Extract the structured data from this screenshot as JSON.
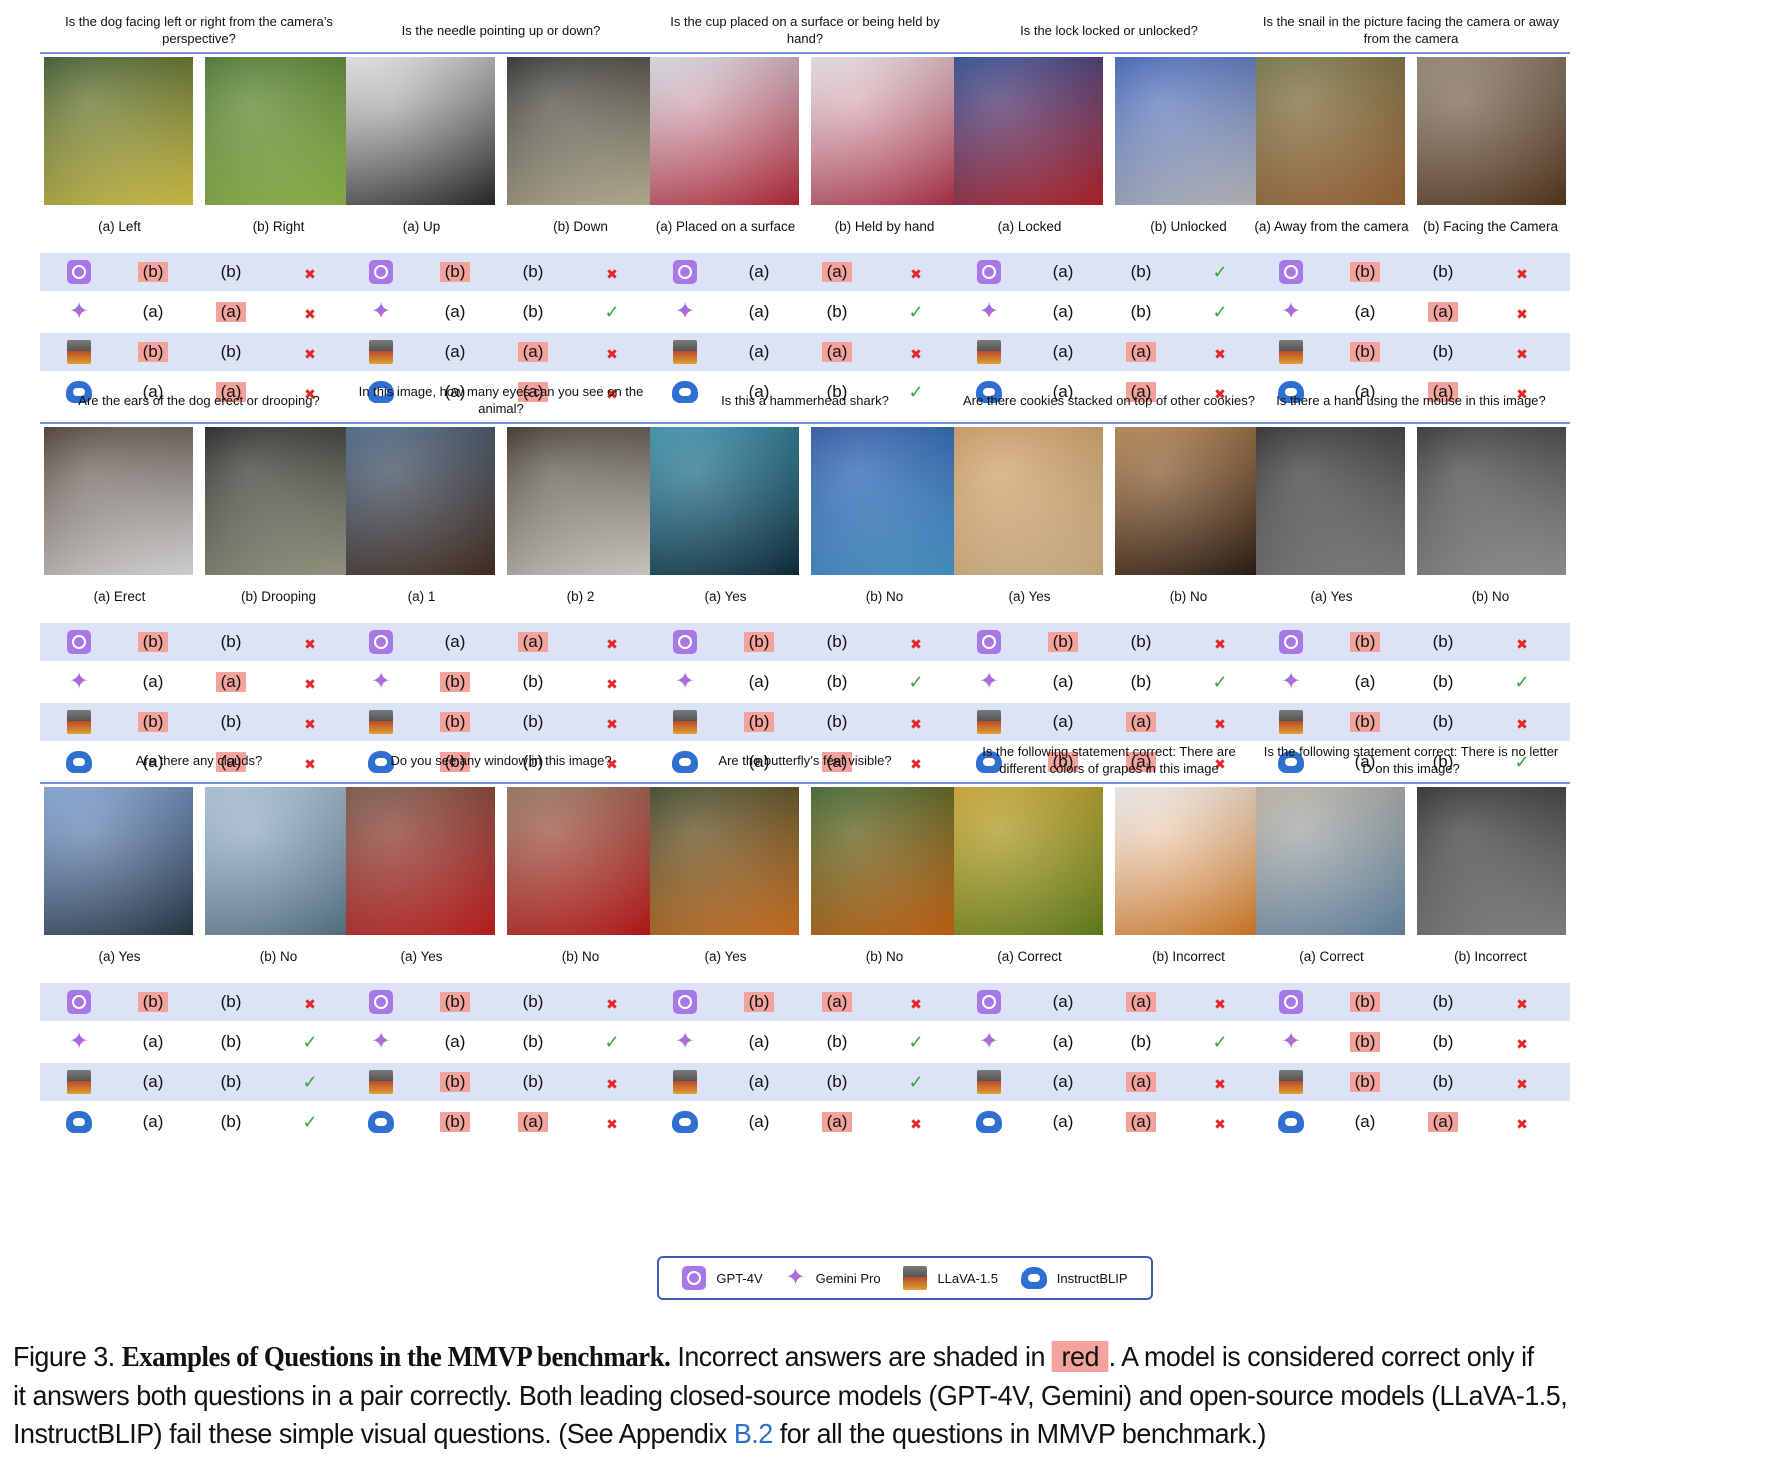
{
  "legend": {
    "items": [
      {
        "icon": "gpt4v-icon",
        "label": "GPT-4V"
      },
      {
        "icon": "gemini-pro-icon",
        "label": "Gemini Pro"
      },
      {
        "icon": "llava-icon",
        "label": "LLaVA-1.5"
      },
      {
        "icon": "instructblip-icon",
        "label": "InstructBLIP"
      }
    ]
  },
  "models": [
    "gpt4v",
    "gemini",
    "llava",
    "instructblip"
  ],
  "panels": [
    {
      "question": "Is the dog facing left or right from the camera’s perspective?",
      "opt_a": "(a) Left",
      "opt_b": "(b) Right",
      "img_a": [
        "#2b4a1a",
        "#e5d24a"
      ],
      "img_b": [
        "#3d6b1f",
        "#9bc34a"
      ],
      "rows": [
        [
          "(b)",
          true,
          "(b)",
          false,
          "x"
        ],
        [
          "(a)",
          false,
          "(a)",
          true,
          "x"
        ],
        [
          "(b)",
          true,
          "(b)",
          false,
          "x"
        ],
        [
          "(a)",
          false,
          "(a)",
          true,
          "x"
        ]
      ]
    },
    {
      "question": "Is the needle pointing up or down?",
      "opt_a": "(a) Up",
      "opt_b": "(b) Down",
      "img_a": [
        "#e8e8e8",
        "#2a2a2a"
      ],
      "img_b": [
        "#1d1d1d",
        "#c9c2a0"
      ],
      "rows": [
        [
          "(b)",
          true,
          "(b)",
          false,
          "x"
        ],
        [
          "(a)",
          false,
          "(b)",
          false,
          "ok"
        ],
        [
          "(a)",
          false,
          "(a)",
          true,
          "x"
        ],
        [
          "(a)",
          false,
          "(a)",
          true,
          "x"
        ]
      ]
    },
    {
      "question": "Is the cup placed on a surface or being held by hand?",
      "opt_a": "(a) Placed on a surface",
      "opt_b": "(b) Held by hand",
      "img_a": [
        "#d6dde6",
        "#c0283a"
      ],
      "img_b": [
        "#e6e4e6",
        "#b73049"
      ],
      "rows": [
        [
          "(a)",
          false,
          "(a)",
          true,
          "x"
        ],
        [
          "(a)",
          false,
          "(b)",
          false,
          "ok"
        ],
        [
          "(a)",
          false,
          "(a)",
          true,
          "x"
        ],
        [
          "(a)",
          false,
          "(b)",
          false,
          "ok"
        ]
      ]
    },
    {
      "question": "Is the lock locked or unlocked?",
      "opt_a": "(a) Locked",
      "opt_b": "(b) Unlocked",
      "img_a": [
        "#1a3d8a",
        "#c1242a"
      ],
      "img_b": [
        "#2f57b5",
        "#c8c8c8"
      ],
      "rows": [
        [
          "(a)",
          false,
          "(b)",
          false,
          "ok"
        ],
        [
          "(a)",
          false,
          "(b)",
          false,
          "ok"
        ],
        [
          "(a)",
          false,
          "(a)",
          true,
          "x"
        ],
        [
          "(a)",
          false,
          "(a)",
          true,
          "x"
        ]
      ]
    },
    {
      "question": "Is the snail in the picture facing the camera or away from the camera",
      "opt_a": "(a) Away from the camera",
      "opt_b": "(b) Facing the Camera",
      "img_a": [
        "#6b6b3a",
        "#a56a38"
      ],
      "img_b": [
        "#8a7a6a",
        "#5a3a20"
      ],
      "rows": [
        [
          "(b)",
          true,
          "(b)",
          false,
          "x"
        ],
        [
          "(a)",
          false,
          "(a)",
          true,
          "x"
        ],
        [
          "(b)",
          true,
          "(b)",
          false,
          "x"
        ],
        [
          "(a)",
          false,
          "(a)",
          true,
          "x"
        ]
      ]
    },
    {
      "question": "Are the ears of the dog erect or drooping?",
      "opt_a": "(a) Erect",
      "opt_b": "(b) Drooping",
      "img_a": [
        "#3a2a20",
        "#f0f0f0"
      ],
      "img_b": [
        "#101010",
        "#a8a890"
      ],
      "rows": [
        [
          "(b)",
          true,
          "(b)",
          false,
          "x"
        ],
        [
          "(a)",
          false,
          "(a)",
          true,
          "x"
        ],
        [
          "(b)",
          true,
          "(b)",
          false,
          "x"
        ],
        [
          "(a)",
          false,
          "(a)",
          true,
          "x"
        ]
      ]
    },
    {
      "question": "In this image, how many eyes can you see on the animal?",
      "opt_a": "(a) 1",
      "opt_b": "(b) 2",
      "img_a": [
        "#3a5a7a",
        "#4a3020"
      ],
      "img_b": [
        "#2a2018",
        "#e8e4dc"
      ],
      "rows": [
        [
          "(a)",
          false,
          "(a)",
          true,
          "x"
        ],
        [
          "(b)",
          true,
          "(b)",
          false,
          "x"
        ],
        [
          "(b)",
          true,
          "(b)",
          false,
          "x"
        ],
        [
          "(b)",
          true,
          "(b)",
          false,
          "x"
        ]
      ]
    },
    {
      "question": "Is this a hammerhead shark?",
      "opt_a": "(a) Yes",
      "opt_b": "(b) No",
      "img_a": [
        "#2a8aa8",
        "#0f3040"
      ],
      "img_b": [
        "#1a4aa0",
        "#4aa0d8"
      ],
      "rows": [
        [
          "(b)",
          true,
          "(b)",
          false,
          "x"
        ],
        [
          "(a)",
          false,
          "(b)",
          false,
          "ok"
        ],
        [
          "(b)",
          true,
          "(b)",
          false,
          "x"
        ],
        [
          "(a)",
          false,
          "(a)",
          true,
          "x"
        ]
      ]
    },
    {
      "question": "Are there cookies stacked on top of other cookies?",
      "opt_a": "(a) Yes",
      "opt_b": "(b) No",
      "img_a": [
        "#c89458",
        "#e0c090"
      ],
      "img_b": [
        "#b07a40",
        "#2a1a10"
      ],
      "rows": [
        [
          "(b)",
          true,
          "(b)",
          false,
          "x"
        ],
        [
          "(a)",
          false,
          "(b)",
          false,
          "ok"
        ],
        [
          "(a)",
          false,
          "(a)",
          true,
          "x"
        ],
        [
          "(b)",
          true,
          "(a)",
          true,
          "x"
        ]
      ]
    },
    {
      "question": "Is there a hand using the mouse in this image?",
      "opt_a": "(a) Yes",
      "opt_b": "(b) No",
      "img_a": [
        "#1a1a1a",
        "#8a8a8a"
      ],
      "img_b": [
        "#202020",
        "#a0a0a0"
      ],
      "rows": [
        [
          "(b)",
          true,
          "(b)",
          false,
          "x"
        ],
        [
          "(a)",
          false,
          "(b)",
          false,
          "ok"
        ],
        [
          "(b)",
          true,
          "(b)",
          false,
          "x"
        ],
        [
          "(a)",
          false,
          "(b)",
          false,
          "ok"
        ]
      ]
    },
    {
      "question": "Are there any clouds?",
      "opt_a": "(a) Yes",
      "opt_b": "(b) No",
      "img_a": [
        "#7aa0d8",
        "#2a3a4a"
      ],
      "img_b": [
        "#a8c0d8",
        "#5a7a90"
      ],
      "rows": [
        [
          "(b)",
          true,
          "(b)",
          false,
          "x"
        ],
        [
          "(a)",
          false,
          "(b)",
          false,
          "ok"
        ],
        [
          "(a)",
          false,
          "(b)",
          false,
          "ok"
        ],
        [
          "(a)",
          false,
          "(b)",
          false,
          "ok"
        ]
      ]
    },
    {
      "question": "Do you see any window in this image?",
      "opt_a": "(a) Yes",
      "opt_b": "(b) No",
      "img_a": [
        "#6a4a38",
        "#d02020"
      ],
      "img_b": [
        "#8a6a50",
        "#c81818"
      ],
      "rows": [
        [
          "(b)",
          true,
          "(b)",
          false,
          "x"
        ],
        [
          "(a)",
          false,
          "(b)",
          false,
          "ok"
        ],
        [
          "(b)",
          true,
          "(b)",
          false,
          "x"
        ],
        [
          "(b)",
          true,
          "(a)",
          true,
          "x"
        ]
      ]
    },
    {
      "question": "Are the butterfly’s feet visible?",
      "opt_a": "(a) Yes",
      "opt_b": "(b) No",
      "img_a": [
        "#2a3a1a",
        "#e07a20"
      ],
      "img_b": [
        "#2a5a1a",
        "#d86a10"
      ],
      "rows": [
        [
          "(b)",
          true,
          "(a)",
          true,
          "x"
        ],
        [
          "(a)",
          false,
          "(b)",
          false,
          "ok"
        ],
        [
          "(a)",
          false,
          "(b)",
          false,
          "ok"
        ],
        [
          "(a)",
          false,
          "(a)",
          true,
          "x"
        ]
      ]
    },
    {
      "question": "Is the following statement correct: There are different colors of grapes in this image",
      "opt_a": "(a) Correct",
      "opt_b": "(b) Incorrect",
      "img_a": [
        "#c8a020",
        "#6a8a20"
      ],
      "img_b": [
        "#f0f0f0",
        "#e08020"
      ],
      "rows": [
        [
          "(a)",
          false,
          "(a)",
          true,
          "x"
        ],
        [
          "(a)",
          false,
          "(b)",
          false,
          "ok"
        ],
        [
          "(a)",
          false,
          "(a)",
          true,
          "x"
        ],
        [
          "(a)",
          false,
          "(a)",
          true,
          "x"
        ]
      ]
    },
    {
      "question": "Is the following statement correct: There is no letter D on this image?",
      "opt_a": "(a) Correct",
      "opt_b": "(b) Incorrect",
      "img_a": [
        "#b8b0a0",
        "#6a90b0"
      ],
      "img_b": [
        "#1a1a1a",
        "#909090"
      ],
      "rows": [
        [
          "(b)",
          true,
          "(b)",
          false,
          "x"
        ],
        [
          "(b)",
          true,
          "(b)",
          false,
          "x"
        ],
        [
          "(b)",
          true,
          "(b)",
          false,
          "x"
        ],
        [
          "(a)",
          false,
          "(a)",
          true,
          "x"
        ]
      ]
    }
  ],
  "caption": {
    "label": "Figure 3.",
    "title": "Examples of Questions in the MMVP benchmark.",
    "text1": "Incorrect answers are shaded in",
    "red_word": "red",
    "text2": ". A model is considered correct only if",
    "line2": "it answers both questions in a pair correctly. Both leading closed-source models (GPT-4V, Gemini) and open-source models (LLaVA-1.5,",
    "line3a": "InstructBLIP) fail these simple visual questions. (See Appendix",
    "link": "B.2",
    "line3b": "for all the questions in MMVP benchmark.)"
  },
  "colors": {
    "wrong_shade": "#f4a29c",
    "row_shade": "#dde3f7",
    "accent_line": "#6f8fd8",
    "cross": "#e02828",
    "check": "#3aa63a"
  }
}
